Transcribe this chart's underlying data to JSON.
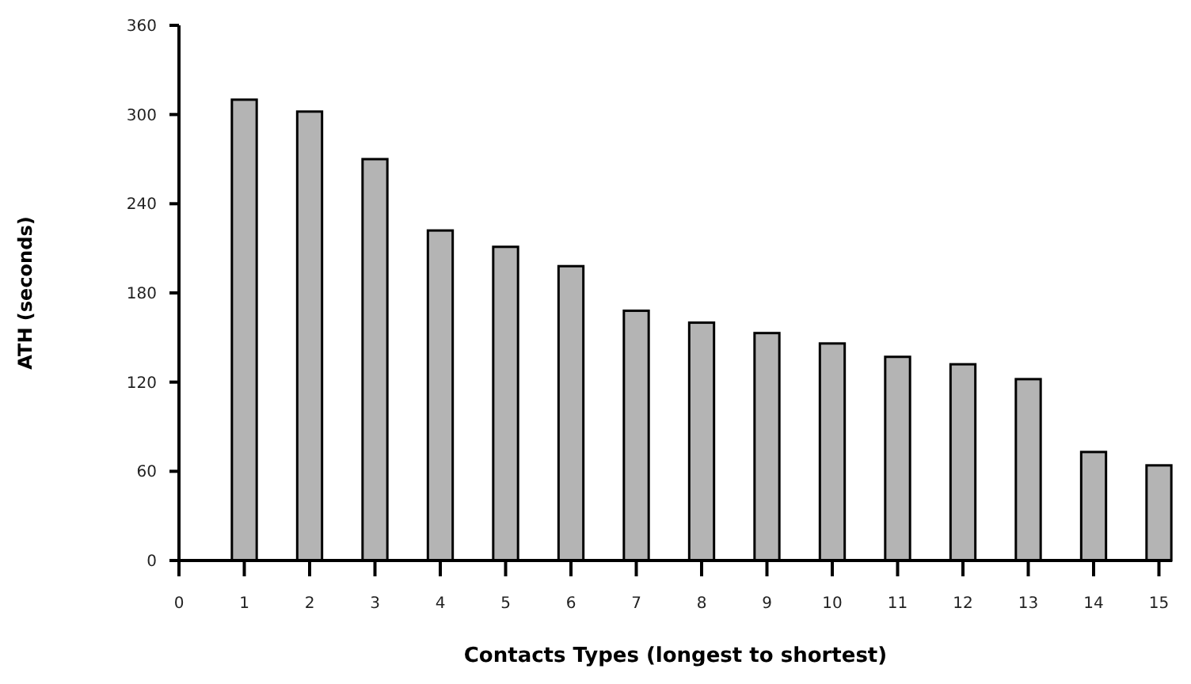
{
  "chart_data": {
    "type": "bar",
    "xlabel": "Contacts Types (longest to shortest)",
    "ylabel": "ATH (seconds)",
    "x": [
      1,
      2,
      3,
      4,
      5,
      6,
      7,
      8,
      9,
      10,
      11,
      12,
      13,
      14,
      15
    ],
    "values": [
      310,
      302,
      270,
      222,
      211,
      198,
      168,
      160,
      153,
      146,
      137,
      132,
      122,
      73,
      64
    ],
    "color": "#b4b4b4",
    "xlim": [
      0,
      15.2
    ],
    "xticks": [
      0,
      1,
      2,
      3,
      4,
      5,
      6,
      7,
      8,
      9,
      10,
      11,
      12,
      13,
      14,
      15
    ],
    "ylim": [
      0,
      360
    ],
    "yticks": [
      0,
      60,
      120,
      180,
      240,
      300,
      360
    ],
    "grid": false
  }
}
